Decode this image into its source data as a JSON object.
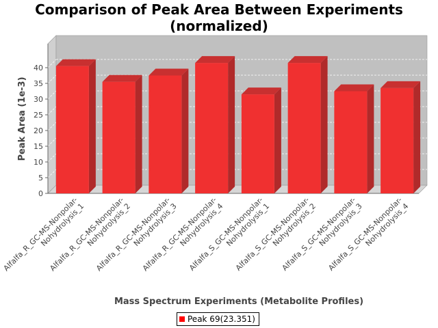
{
  "chart_data": {
    "type": "bar",
    "title_lines": [
      "Comparison of Peak Area Between Experiments",
      "(normalized)"
    ],
    "xlabel": "Mass Spectrum Experiments (Metabolite Profiles)",
    "ylabel": "Peak Area (1e-3)",
    "ylim": [
      0,
      45
    ],
    "yticks": [
      0,
      5,
      10,
      15,
      20,
      25,
      30,
      35,
      40
    ],
    "grid": true,
    "legend_placement": "bottom",
    "categories": [
      [
        "Alfalfa_R_GC-MS-Nonpolar-",
        "Nohydrolysis_1"
      ],
      [
        "Alfalfa_R_GC-MS-Nonpolar-",
        "Nohydrolysis_2"
      ],
      [
        "Alfalfa_R_GC-MS-Nonpolar-",
        "Nohydrolysis_3"
      ],
      [
        "Alfalfa_R_GC-MS-Nonpolar-",
        "Nohydrolysis_4"
      ],
      [
        "Alfalfa_S_GC-MS-Nonpolar-",
        "Nohydrolysis_1"
      ],
      [
        "Alfalfa_S_GC-MS-Nonpolar-",
        "Nohydrolysis_2"
      ],
      [
        "Alfalfa_S_GC-MS-Nonpolar-",
        "Nohydrolysis_3"
      ],
      [
        "Alfalfa_S_GC-MS-Nonpolar-",
        "Nohydrolysis_4"
      ]
    ],
    "series": [
      {
        "name": "Peak 69(23.351)",
        "color": "#ff0000",
        "values": [
          40.5,
          35.5,
          37.5,
          41.5,
          31.5,
          41.5,
          32.5,
          33.5
        ]
      }
    ]
  }
}
